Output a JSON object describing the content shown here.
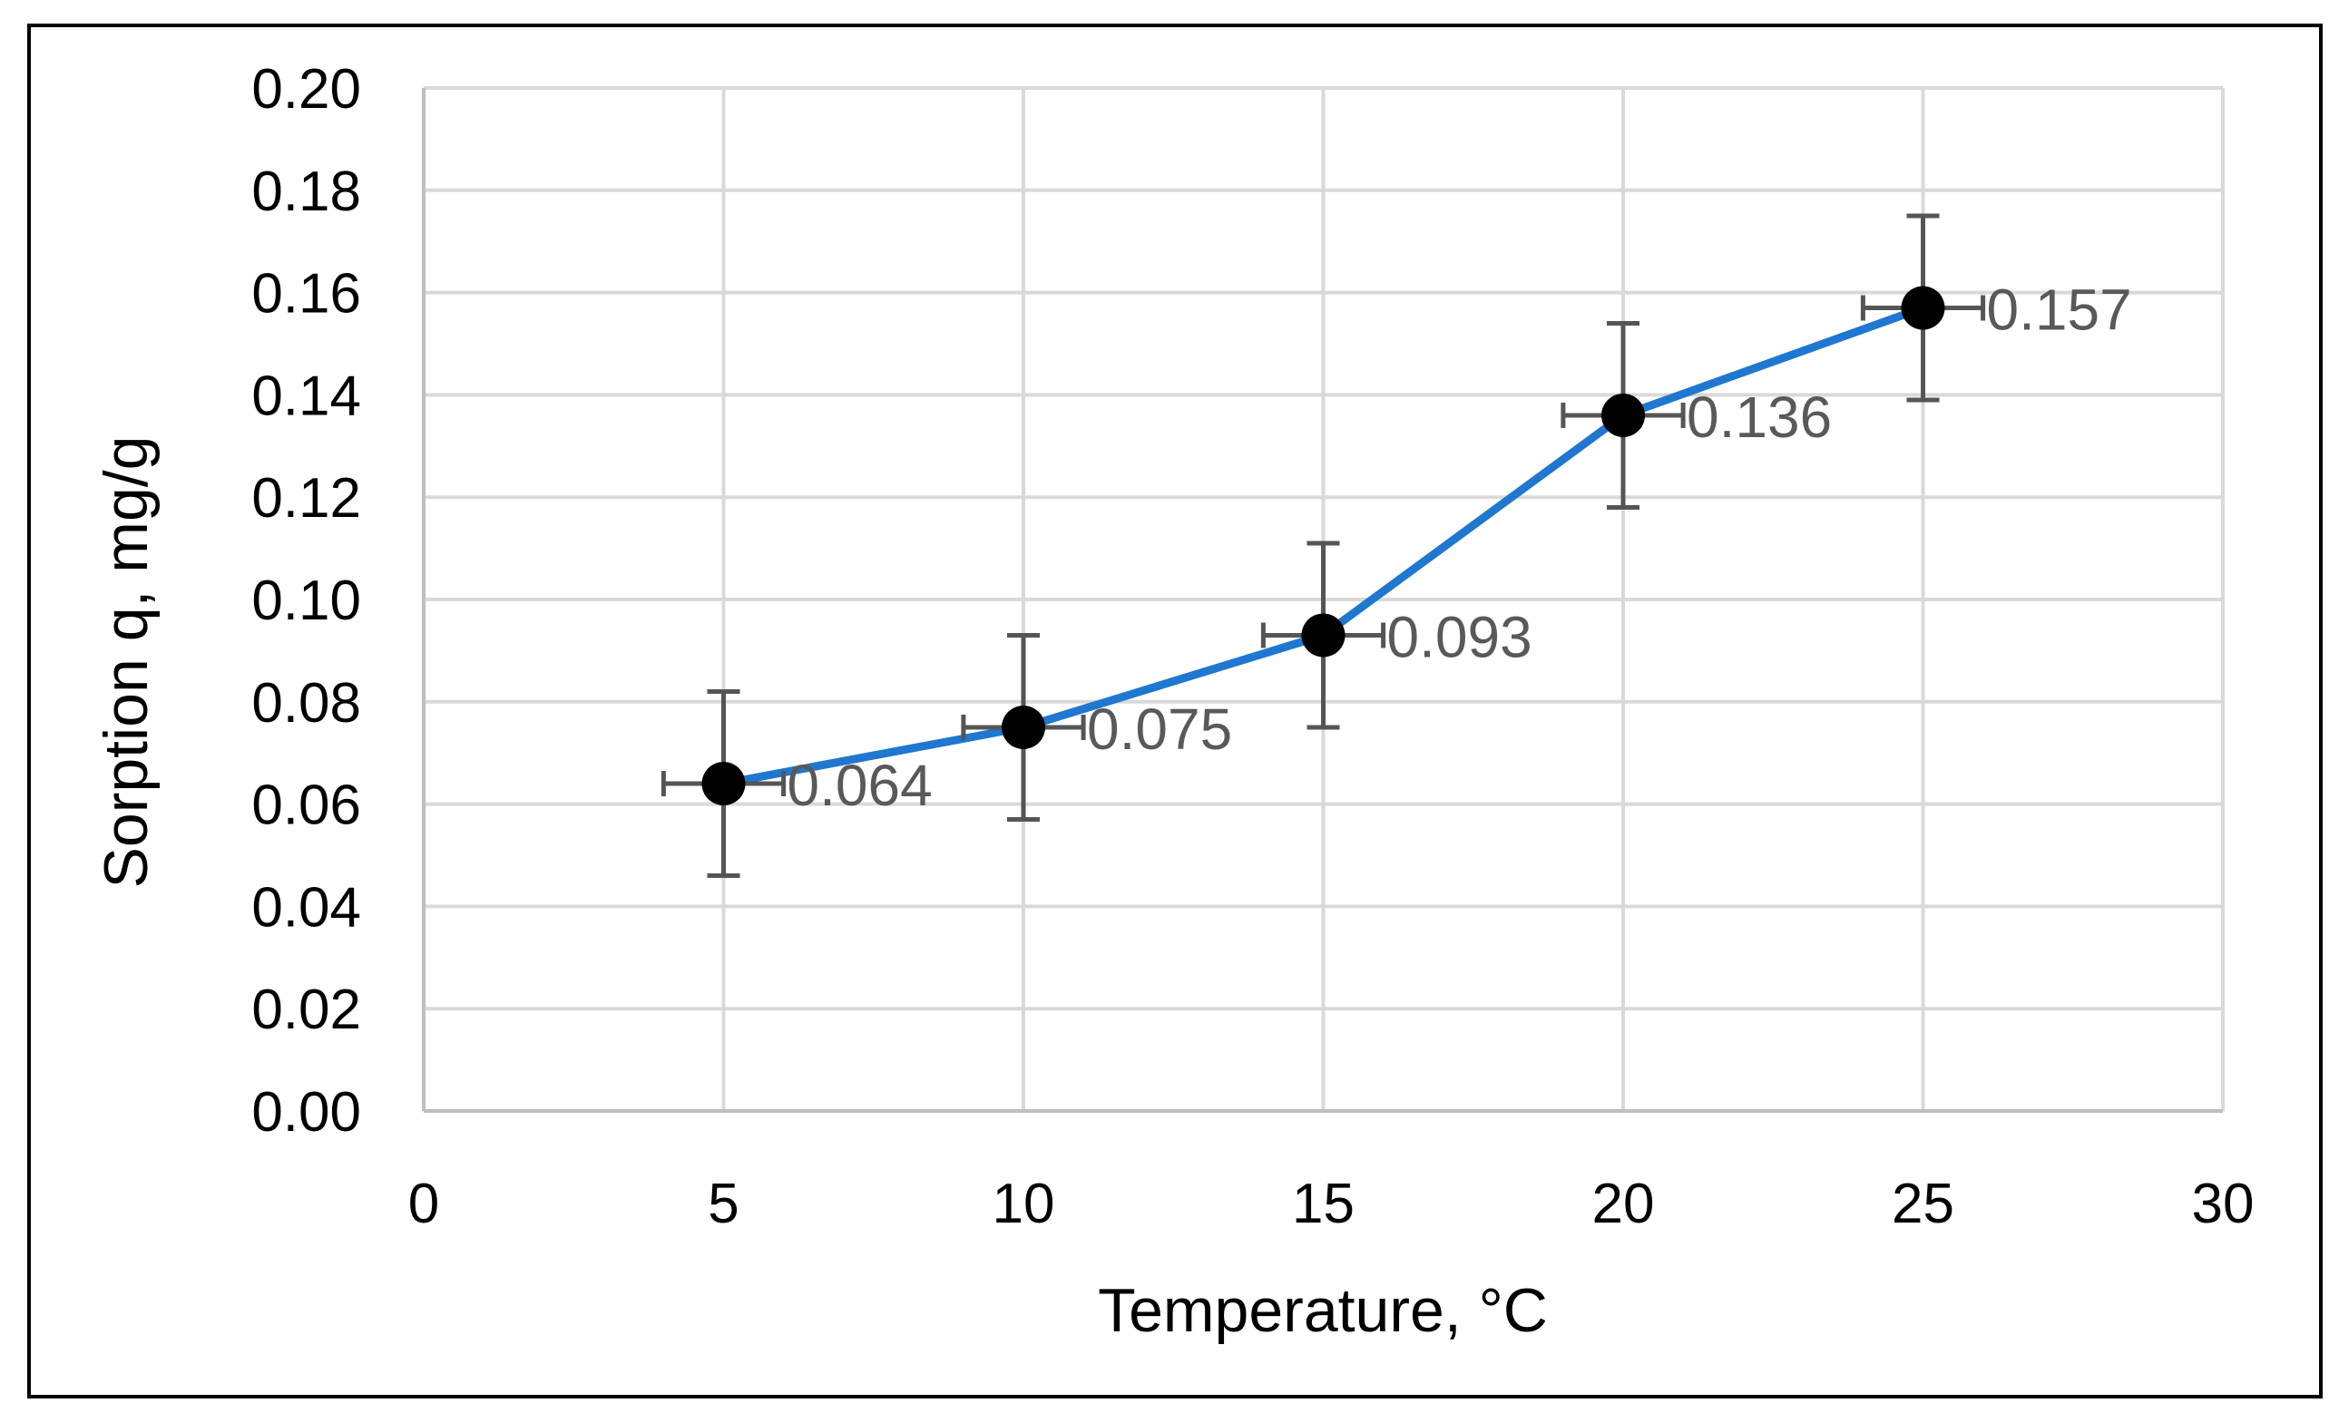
{
  "chart_data": {
    "type": "scatter",
    "title": "",
    "xlabel": "Temperature, °C",
    "ylabel": "Sorption q, mg/g",
    "xlim": [
      0,
      30
    ],
    "ylim": [
      0,
      0.2
    ],
    "x_ticks": [
      "0",
      "5",
      "10",
      "15",
      "20",
      "25",
      "30"
    ],
    "x_tick_values": [
      0,
      5,
      10,
      15,
      20,
      25,
      30
    ],
    "y_ticks": [
      "0.00",
      "0.02",
      "0.04",
      "0.06",
      "0.08",
      "0.10",
      "0.12",
      "0.14",
      "0.16",
      "0.18",
      "0.20"
    ],
    "y_tick_values": [
      0,
      0.02,
      0.04,
      0.06,
      0.08,
      0.1,
      0.12,
      0.14,
      0.16,
      0.18,
      0.2
    ],
    "grid": true,
    "series": [
      {
        "name": "Sorption",
        "x": [
          5,
          10,
          15,
          20,
          25
        ],
        "y": [
          0.064,
          0.075,
          0.093,
          0.136,
          0.157
        ],
        "labels": [
          "0.064",
          "0.075",
          "0.093",
          "0.136",
          "0.157"
        ],
        "y_error": [
          0.018,
          0.018,
          0.018,
          0.018,
          0.018
        ],
        "x_error": [
          1,
          1,
          1,
          1,
          1
        ],
        "line_color": "#1f77d0",
        "marker_color": "#000000",
        "error_bar_color": "#555555",
        "label_color": "#595959"
      }
    ],
    "colors": {
      "grid": "#d9d9d9",
      "axis": "#bfbfbf",
      "frame": "#000000",
      "text": "#000000"
    }
  }
}
